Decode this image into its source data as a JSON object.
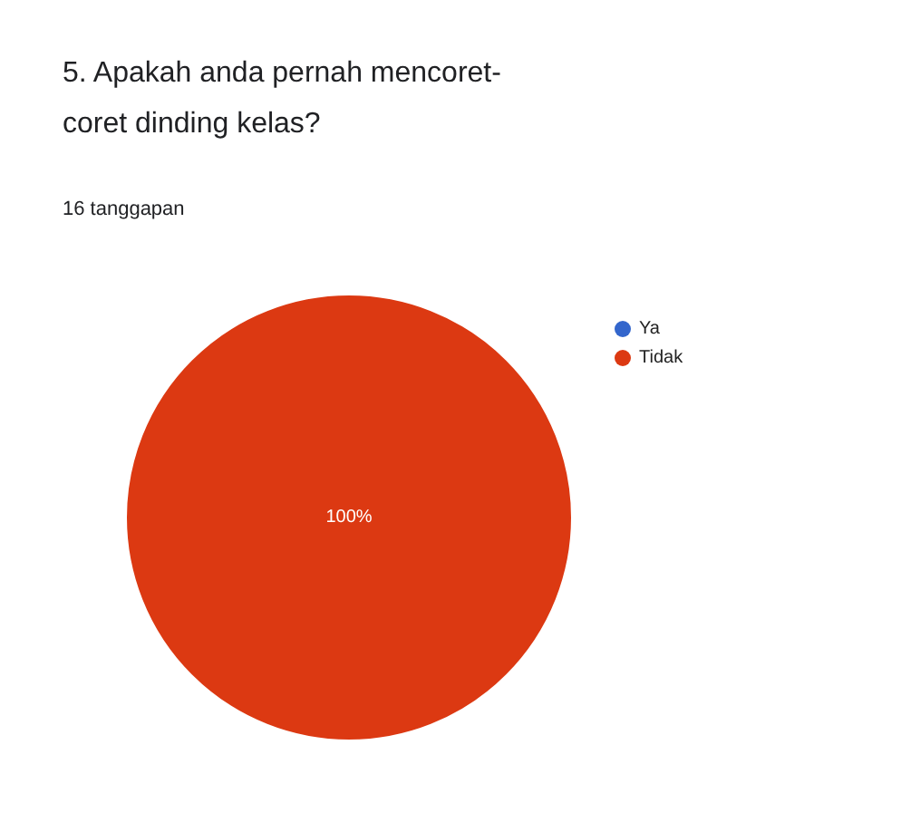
{
  "chart_data": {
    "type": "pie",
    "title": "5. Apakah anda pernah mencoret-coret dinding kelas?",
    "subtitle": "16 tanggapan",
    "categories": [
      "Ya",
      "Tidak"
    ],
    "values": [
      0,
      100
    ],
    "colors": [
      "#3366cc",
      "#dc3912"
    ],
    "value_labels": [
      null,
      "100%"
    ],
    "legend": "top right"
  }
}
